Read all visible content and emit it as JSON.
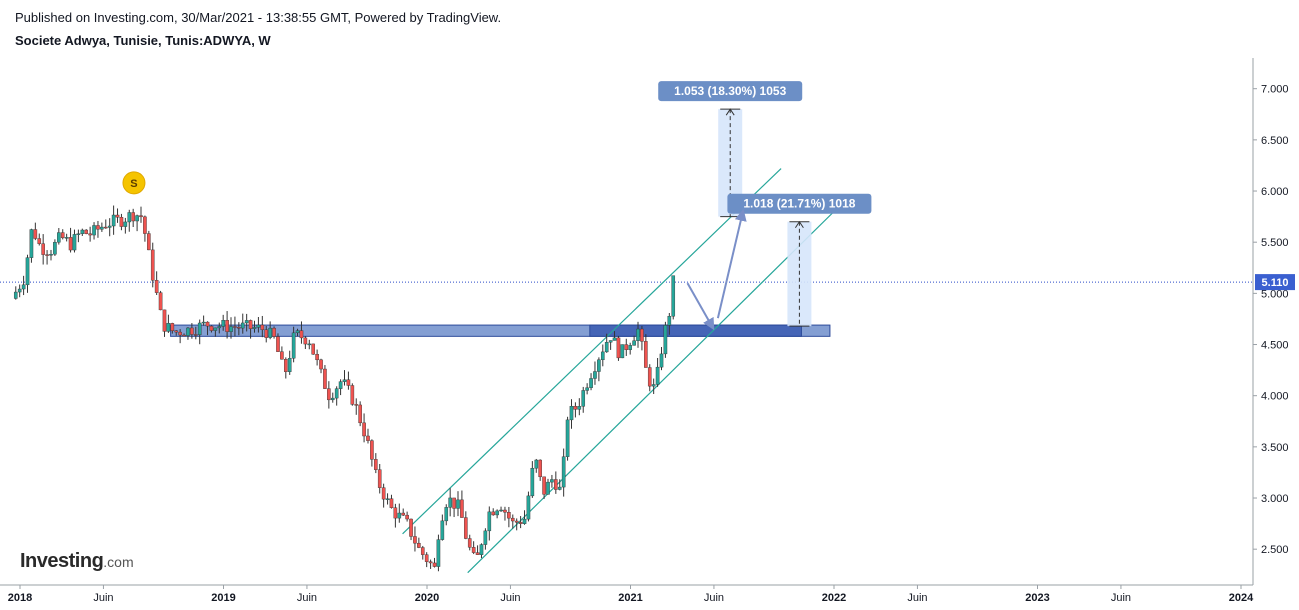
{
  "header": {
    "published": "Published on Investing.com, 30/Mar/2021 - 13:38:55 GMT, Powered by TradingView.",
    "symbol": "Societe Adwya, Tunisie, Tunis:ADWYA, W"
  },
  "logo": {
    "brand": "Investing",
    "suffix": ".com"
  },
  "colors": {
    "up": "#26a69a",
    "down": "#ef5350",
    "wick": "#333333",
    "channel": "#26a69a",
    "zone_fill": "#5b7fc4",
    "zone_stroke": "#2c4a9a",
    "label_bg": "#6c8fc6",
    "measure_fill": "#d6e6fb",
    "arrow": "#7a8fc8",
    "price_line": "#2a4ac8",
    "price_badge": "#3a5fd0"
  },
  "chart_data": {
    "type": "candlestick",
    "interval": "W",
    "ylim": [
      2.15,
      7.3
    ],
    "yticks": [
      2.5,
      3.0,
      3.5,
      4.0,
      4.5,
      5.0,
      5.5,
      6.0,
      6.5,
      7.0
    ],
    "ytick_labels": [
      "2.500",
      "3.000",
      "3.500",
      "4.000",
      "4.500",
      "5.000",
      "5.500",
      "6.000",
      "6.500",
      "7.000"
    ],
    "xticks": [
      {
        "label": "2018",
        "t": 0
      },
      {
        "label": "Juin",
        "t": 0.41
      },
      {
        "label": "2019",
        "t": 1
      },
      {
        "label": "Juin",
        "t": 1.41
      },
      {
        "label": "2020",
        "t": 2
      },
      {
        "label": "Juin",
        "t": 2.41
      },
      {
        "label": "2021",
        "t": 3
      },
      {
        "label": "Juin",
        "t": 3.41
      },
      {
        "label": "2022",
        "t": 4
      },
      {
        "label": "Juin",
        "t": 4.41
      },
      {
        "label": "2023",
        "t": 5
      },
      {
        "label": "Juin",
        "t": 5.41
      },
      {
        "label": "2024",
        "t": 6
      }
    ],
    "last_price": 5.11,
    "last_price_label": "5.110",
    "close_path": [
      [
        -0.04,
        4.95
      ],
      [
        0.02,
        5.15
      ],
      [
        0.06,
        5.65
      ],
      [
        0.1,
        5.45
      ],
      [
        0.15,
        5.42
      ],
      [
        0.2,
        5.55
      ],
      [
        0.25,
        5.48
      ],
      [
        0.3,
        5.6
      ],
      [
        0.35,
        5.58
      ],
      [
        0.42,
        5.68
      ],
      [
        0.5,
        5.72
      ],
      [
        0.56,
        5.78
      ],
      [
        0.6,
        5.75
      ],
      [
        0.63,
        5.4
      ],
      [
        0.66,
        5.1
      ],
      [
        0.7,
        4.7
      ],
      [
        0.76,
        4.62
      ],
      [
        0.84,
        4.65
      ],
      [
        0.92,
        4.7
      ],
      [
        1.0,
        4.68
      ],
      [
        1.1,
        4.67
      ],
      [
        1.2,
        4.65
      ],
      [
        1.25,
        4.55
      ],
      [
        1.3,
        4.2
      ],
      [
        1.35,
        4.6
      ],
      [
        1.42,
        4.55
      ],
      [
        1.48,
        4.2
      ],
      [
        1.52,
        4.0
      ],
      [
        1.58,
        4.15
      ],
      [
        1.64,
        3.95
      ],
      [
        1.7,
        3.6
      ],
      [
        1.75,
        3.2
      ],
      [
        1.82,
        2.9
      ],
      [
        1.9,
        2.75
      ],
      [
        1.96,
        2.5
      ],
      [
        2.04,
        2.3
      ],
      [
        2.06,
        2.75
      ],
      [
        2.1,
        3.0
      ],
      [
        2.16,
        2.9
      ],
      [
        2.2,
        2.55
      ],
      [
        2.24,
        2.35
      ],
      [
        2.3,
        2.85
      ],
      [
        2.36,
        2.95
      ],
      [
        2.42,
        2.75
      ],
      [
        2.48,
        2.8
      ],
      [
        2.53,
        3.4
      ],
      [
        2.57,
        3.05
      ],
      [
        2.62,
        3.2
      ],
      [
        2.66,
        3.05
      ],
      [
        2.69,
        3.8
      ],
      [
        2.74,
        3.9
      ],
      [
        2.8,
        4.2
      ],
      [
        2.86,
        4.45
      ],
      [
        2.9,
        4.6
      ],
      [
        2.95,
        4.4
      ],
      [
        3.0,
        4.55
      ],
      [
        3.04,
        4.65
      ],
      [
        3.08,
        4.2
      ],
      [
        3.12,
        4.05
      ],
      [
        3.16,
        4.55
      ],
      [
        3.19,
        4.8
      ],
      [
        3.21,
        5.11
      ]
    ],
    "support_zone": {
      "t0": 0.74,
      "t1": 3.98,
      "y0": 4.58,
      "y1": 4.69
    },
    "recent_zone": {
      "t0": 2.8,
      "t1": 3.84,
      "y0": 4.58,
      "y1": 4.69
    },
    "channel_lines": [
      {
        "t0": 1.88,
        "y0": 2.65,
        "t1": 3.74,
        "y1": 6.22
      },
      {
        "t0": 2.2,
        "y0": 2.27,
        "t1": 4.0,
        "y1": 5.8
      }
    ],
    "measures": [
      {
        "t": 3.49,
        "y_low": 5.75,
        "y_high": 6.8,
        "label": "1.053 (18.30%) 1053"
      },
      {
        "t": 3.83,
        "y_low": 4.68,
        "y_high": 5.7,
        "label": "1.018 (21.71%) 1018"
      }
    ],
    "arrows": [
      {
        "from": [
          3.28,
          5.1
        ],
        "via": [
          3.4,
          4.68
        ],
        "to": [
          3.55,
          5.78
        ]
      }
    ],
    "event_marker": {
      "t": 0.56,
      "y": 6.08,
      "label": "S"
    }
  }
}
